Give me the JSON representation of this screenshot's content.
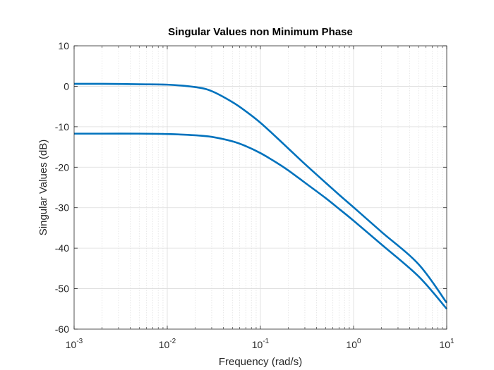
{
  "chart_data": {
    "type": "line",
    "title": "Singular Values non Minimum Phase",
    "xlabel": "Frequency (rad/s)",
    "ylabel": "Singular Values (dB)",
    "xscale": "log",
    "xlim": [
      0.001,
      10
    ],
    "ylim": [
      -60,
      10
    ],
    "x_ticks": [
      {
        "value": 0.001,
        "base": "10",
        "exp": "-3"
      },
      {
        "value": 0.01,
        "base": "10",
        "exp": "-2"
      },
      {
        "value": 0.1,
        "base": "10",
        "exp": "-1"
      },
      {
        "value": 1,
        "base": "10",
        "exp": "0"
      },
      {
        "value": 10,
        "base": "10",
        "exp": "1"
      }
    ],
    "y_ticks": [
      10,
      0,
      -10,
      -20,
      -30,
      -40,
      -50,
      -60
    ],
    "y_tick_labels": [
      "10",
      "0",
      "-10",
      "-20",
      "-30",
      "-40",
      "-50",
      "-60"
    ],
    "grid": true,
    "minor_grid": true,
    "line_color": "#0072BD",
    "series": [
      {
        "x": [
          0.001,
          0.002,
          0.005,
          0.01,
          0.02,
          0.03,
          0.05,
          0.07,
          0.1,
          0.15,
          0.2,
          0.3,
          0.5,
          0.7,
          1,
          2,
          5,
          10
        ],
        "y": [
          0.6,
          0.6,
          0.5,
          0.4,
          -0.2,
          -1.2,
          -3.9,
          -6.2,
          -9.0,
          -12.7,
          -15.4,
          -19.2,
          -23.8,
          -26.8,
          -29.9,
          -36.0,
          -44.0,
          -53.5
        ]
      },
      {
        "x": [
          0.001,
          0.002,
          0.005,
          0.01,
          0.02,
          0.03,
          0.05,
          0.07,
          0.1,
          0.15,
          0.2,
          0.3,
          0.5,
          0.7,
          1,
          2,
          5,
          10
        ],
        "y": [
          -11.7,
          -11.7,
          -11.7,
          -11.8,
          -12.1,
          -12.5,
          -13.6,
          -14.8,
          -16.5,
          -18.9,
          -20.8,
          -23.8,
          -27.6,
          -30.3,
          -33.2,
          -39.1,
          -47.0,
          -55.0
        ]
      }
    ]
  }
}
